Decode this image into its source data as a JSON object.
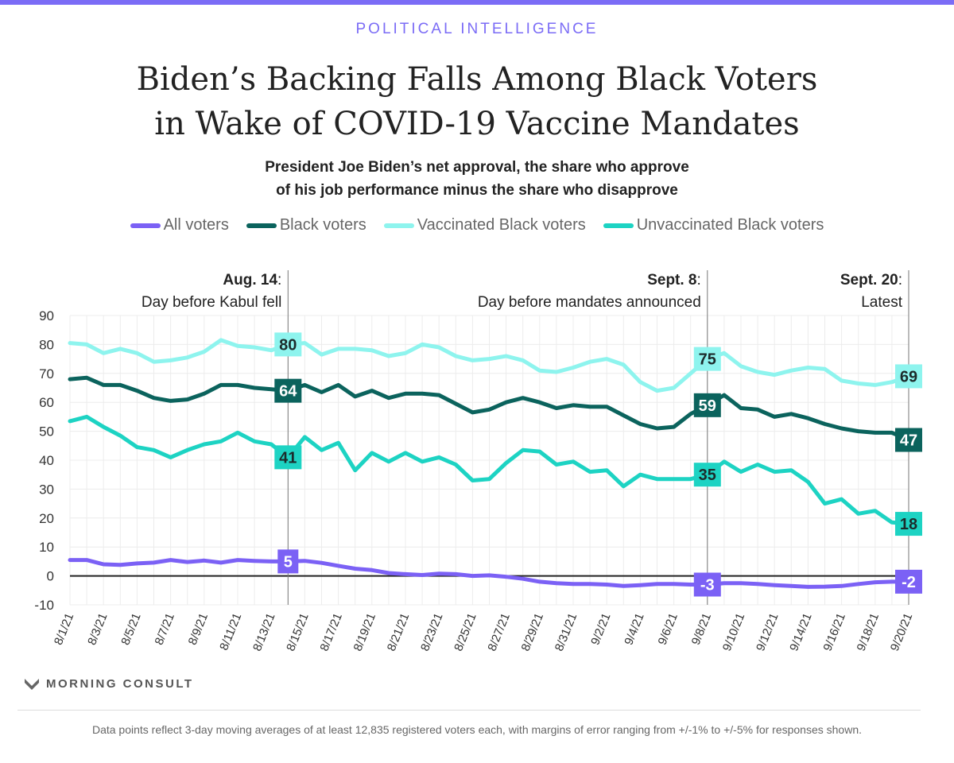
{
  "kicker": "POLITICAL INTELLIGENCE",
  "title_line1": "Biden’s Backing Falls Among Black Voters",
  "title_line2": "in Wake of COVID-19 Vaccine Mandates",
  "subtitle_line1": "President Joe Biden’s net approval, the share who approve",
  "subtitle_line2": "of his job performance minus the share who disapprove",
  "logo_text": "MORNING CONSULT",
  "footnote": "Data points reflect 3-day moving averages of at least 12,835 registered voters each, with margins of error ranging from +/-1% to +/-5% for responses shown.",
  "chart_data": {
    "type": "line",
    "title": "Biden’s Backing Falls Among Black Voters in Wake of COVID-19 Vaccine Mandates",
    "xlabel": "",
    "ylabel": "",
    "ylim": [
      -10,
      90
    ],
    "yticks": [
      90,
      80,
      70,
      60,
      50,
      40,
      30,
      20,
      10,
      0,
      -10
    ],
    "grid": true,
    "legend_position": "top",
    "x": [
      "8/1/21",
      "8/2/21",
      "8/3/21",
      "8/4/21",
      "8/5/21",
      "8/6/21",
      "8/7/21",
      "8/8/21",
      "8/9/21",
      "8/10/21",
      "8/11/21",
      "8/12/21",
      "8/13/21",
      "8/14/21",
      "8/15/21",
      "8/16/21",
      "8/17/21",
      "8/18/21",
      "8/19/21",
      "8/20/21",
      "8/21/21",
      "8/22/21",
      "8/23/21",
      "8/24/21",
      "8/25/21",
      "8/26/21",
      "8/27/21",
      "8/28/21",
      "8/29/21",
      "8/30/21",
      "8/31/21",
      "9/1/21",
      "9/2/21",
      "9/3/21",
      "9/4/21",
      "9/5/21",
      "9/6/21",
      "9/7/21",
      "9/8/21",
      "9/9/21",
      "9/10/21",
      "9/11/21",
      "9/12/21",
      "9/13/21",
      "9/14/21",
      "9/15/21",
      "9/16/21",
      "9/17/21",
      "9/18/21",
      "9/19/21",
      "9/20/21"
    ],
    "series": [
      {
        "name": "All voters",
        "color": "#7b61f5",
        "label_text": "#ffffff",
        "values": [
          5.5,
          5.5,
          4,
          3.8,
          4.3,
          4.6,
          5.5,
          4.8,
          5.3,
          4.6,
          5.5,
          5.2,
          5,
          5,
          5.2,
          4.5,
          3.5,
          2.5,
          2,
          1,
          0.6,
          0.3,
          0.8,
          0.6,
          0,
          0.2,
          -0.3,
          -1,
          -2,
          -2.5,
          -2.8,
          -2.8,
          -3,
          -3.5,
          -3.2,
          -2.8,
          -2.8,
          -3,
          -3,
          -2.5,
          -2.5,
          -2.8,
          -3.2,
          -3.5,
          -3.8,
          -3.7,
          -3.5,
          -2.8,
          -2.2,
          -2,
          -2
        ]
      },
      {
        "name": "Black voters",
        "color": "#0b635d",
        "label_text": "#ffffff",
        "values": [
          68,
          68.5,
          66,
          66,
          64,
          61.5,
          60.5,
          61,
          63,
          66,
          66,
          65,
          64.5,
          64,
          66,
          63.5,
          66,
          62,
          64,
          61.5,
          63,
          63,
          62.5,
          59.5,
          56.5,
          57.5,
          60,
          61.5,
          60,
          58,
          59,
          58.5,
          58.5,
          55.5,
          52.5,
          51,
          51.5,
          56,
          59,
          62.5,
          58,
          57.5,
          55,
          56,
          54.5,
          52.5,
          51,
          50,
          49.5,
          49.5,
          47
        ]
      },
      {
        "name": "Vaccinated Black voters",
        "color": "#8ef4ee",
        "label_text": "#1c2b2b",
        "values": [
          80.5,
          80,
          77,
          78.5,
          77,
          74,
          74.5,
          75.5,
          77.5,
          81.5,
          79.5,
          79,
          78,
          80,
          80.5,
          76.5,
          78.5,
          78.5,
          78,
          76,
          77,
          80,
          79,
          76,
          74.5,
          75,
          76,
          74.5,
          71,
          70.5,
          72,
          74,
          75,
          73,
          67,
          64,
          65,
          70,
          75,
          77,
          72.5,
          70.5,
          69.5,
          71,
          72,
          71.5,
          67.5,
          66.5,
          66,
          67,
          69
        ]
      },
      {
        "name": "Unvaccinated Black voters",
        "color": "#1dd3c3",
        "label_text": "#1c2b2b",
        "values": [
          53.5,
          55,
          51.5,
          48.5,
          44.5,
          43.5,
          41,
          43.5,
          45.5,
          46.5,
          49.5,
          46.5,
          45.5,
          41,
          48,
          43.5,
          46,
          36.5,
          42.5,
          39.5,
          42.5,
          39.5,
          41,
          38.5,
          33,
          33.5,
          39,
          43.5,
          43,
          38.5,
          39.5,
          36,
          36.5,
          31,
          35,
          33.5,
          33.5,
          33.5,
          35,
          39.5,
          36,
          38.5,
          36,
          36.5,
          32.5,
          25,
          26.5,
          21.5,
          22.5,
          18.5,
          18
        ]
      }
    ],
    "annotations": [
      {
        "x": "8/14/21",
        "bold": "Aug. 14",
        "text": "Day before Kabul fell",
        "labels": [
          "5",
          "64",
          "80",
          "41"
        ]
      },
      {
        "x": "9/8/21",
        "bold": "Sept. 8",
        "text": "Day before mandates announced",
        "labels": [
          "-3",
          "59",
          "75",
          "35"
        ]
      },
      {
        "x": "9/20/21",
        "bold": "Sept. 20",
        "text": "Latest",
        "labels": [
          "-2",
          "47",
          "69",
          "18"
        ]
      }
    ]
  }
}
